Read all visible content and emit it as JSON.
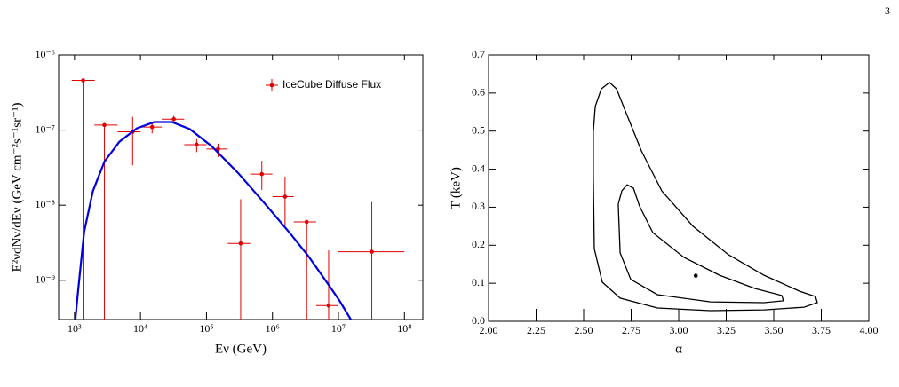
{
  "page_number": "3",
  "chart_data": [
    {
      "type": "scatter",
      "log_x": true,
      "log_y": true,
      "xlabel": "Eν (GeV)",
      "ylabel": "E²νdNν/dEν (GeV cm⁻²s⁻¹sr⁻¹)",
      "xlim": [
        575,
        190000000
      ],
      "ylim": [
        3e-10,
        1e-06
      ],
      "xticks": [
        {
          "value": 1000,
          "label": "10³"
        },
        {
          "value": 10000,
          "label": "10⁴"
        },
        {
          "value": 100000,
          "label": "10⁵"
        },
        {
          "value": 1000000,
          "label": "10⁶"
        },
        {
          "value": 10000000,
          "label": "10⁷"
        },
        {
          "value": 100000000,
          "label": "10⁸"
        }
      ],
      "yticks": [
        {
          "value": 1e-09,
          "label": "10⁻⁹"
        },
        {
          "value": 1e-08,
          "label": "10⁻⁸"
        },
        {
          "value": 1e-07,
          "label": "10⁻⁷"
        },
        {
          "value": 1e-06,
          "label": "10⁻⁶"
        }
      ],
      "legend": "upper right",
      "series": [
        {
          "name": "IceCube Diffuse Flux",
          "color": "#e00000",
          "x": [
            1350,
            2840,
            7600,
            15000,
            32000,
            71000,
            150000,
            330000,
            690000,
            1550000,
            3300000,
            7100000,
            32000000
          ],
          "values": [
            4.6e-07,
            1.17e-07,
            9.5e-08,
            1.1e-07,
            1.4e-07,
            6.4e-08,
            5.6e-08,
            3.1e-09,
            2.6e-08,
            1.3e-08,
            6e-09,
            4.6e-10,
            2.4e-09
          ],
          "x_low": [
            912,
            2000,
            4500,
            10000,
            21000,
            46000,
            100000,
            210000,
            460000,
            1000000,
            2100000,
            4600000,
            10000000
          ],
          "x_high": [
            2030,
            4500,
            10000,
            21000,
            46000,
            100000,
            210000,
            460000,
            1000000,
            2100000,
            4600000,
            10000000,
            100000000
          ],
          "y_low": [
            1e-10,
            1e-10,
            3.4e-08,
            9e-08,
            1.25e-07,
            5.1e-08,
            4.4e-08,
            1e-10,
            1.6e-08,
            4.9e-09,
            1e-10,
            1e-10,
            1e-10
          ],
          "y_high": [
            4.6e-07,
            1.17e-07,
            1.5e-07,
            1.3e-07,
            1.55e-07,
            7.6e-08,
            6.6e-08,
            1.2e-08,
            3.9e-08,
            2.4e-08,
            6e-09,
            2.5e-09,
            1.1e-08
          ]
        },
        {
          "type": "line",
          "color": "#0000dd",
          "x": [
            1030,
            1130,
            1400,
            1900,
            2840,
            4790,
            8850,
            16300,
            30000,
            56000,
            120000,
            300000,
            760000,
            1900000,
            3500000,
            6500000,
            10300000,
            15400000
          ],
          "values": [
            3e-10,
            7e-10,
            4.4e-09,
            1.54e-08,
            3.8e-08,
            7e-08,
            1.06e-07,
            1.28e-07,
            1.28e-07,
            1.03e-07,
            6.1e-08,
            2.7e-08,
            1.06e-08,
            4.1e-09,
            2.1e-09,
            9.7e-10,
            5.4e-10,
            3e-10
          ]
        }
      ]
    },
    {
      "type": "contour",
      "xlabel": "α",
      "ylabel": "T (keV)",
      "xlim": [
        2,
        4
      ],
      "ylim": [
        0,
        0.7
      ],
      "xticks": [
        {
          "value": 2,
          "label": "2.00"
        },
        2.25,
        {
          "value": 2.5,
          "label": "2.50"
        },
        2.75,
        {
          "value": 3,
          "label": "3.00"
        },
        3.25,
        {
          "value": 3.5,
          "label": "3.50"
        },
        3.75,
        {
          "value": 4,
          "label": "4.00"
        }
      ],
      "yticks": [
        {
          "value": 0,
          "label": "0.0"
        },
        0.1,
        0.2,
        0.3,
        0.4,
        0.5,
        0.6,
        0.7
      ],
      "series": [
        {
          "color": "#000000",
          "x": [
            2.551,
            2.561,
            2.593,
            2.636,
            2.673,
            2.729,
            2.804,
            2.911,
            3.075,
            3.262,
            3.449,
            3.636,
            3.72,
            3.729,
            3.659,
            3.449,
            3.168,
            2.888,
            2.692,
            2.598,
            2.556,
            2.551,
            2.551
          ],
          "values": [
            0.499,
            0.565,
            0.611,
            0.628,
            0.611,
            0.541,
            0.448,
            0.343,
            0.25,
            0.175,
            0.121,
            0.079,
            0.065,
            0.049,
            0.037,
            0.03,
            0.028,
            0.035,
            0.061,
            0.103,
            0.191,
            0.378,
            0.499
          ]
        },
        {
          "color": "#000000",
          "x": [
            2.682,
            2.701,
            2.729,
            2.762,
            2.794,
            2.864,
            3.028,
            3.215,
            3.402,
            3.542,
            3.551,
            3.449,
            3.168,
            2.888,
            2.748,
            2.692,
            2.682
          ],
          "values": [
            0.308,
            0.343,
            0.359,
            0.35,
            0.303,
            0.233,
            0.168,
            0.121,
            0.086,
            0.068,
            0.054,
            0.049,
            0.051,
            0.07,
            0.11,
            0.18,
            0.308
          ]
        },
        {
          "type": "point",
          "color": "#000000",
          "x": [
            3.09
          ],
          "values": [
            0.12
          ]
        }
      ]
    }
  ]
}
